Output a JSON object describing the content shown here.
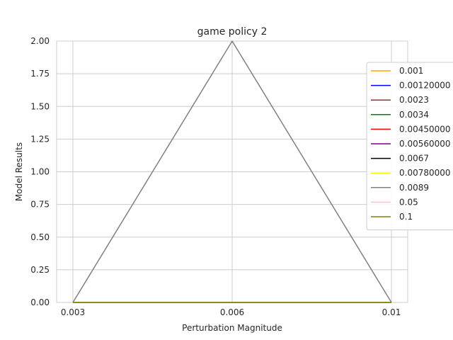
{
  "chart_data": {
    "type": "line",
    "title": "game policy 2",
    "xlabel": "Perturbation Magnitude",
    "ylabel": "Model Results",
    "x": [
      "0.003",
      "0.006",
      "0.01"
    ],
    "ylim": [
      0,
      2.0
    ],
    "yticks": [
      "0.00",
      "0.25",
      "0.50",
      "0.75",
      "1.00",
      "1.25",
      "1.50",
      "1.75",
      "2.00"
    ],
    "grid": true,
    "legend_position": "right",
    "series": [
      {
        "name": "0.001",
        "color": "#ffa500",
        "values": [
          0,
          0,
          0
        ]
      },
      {
        "name": "0.00120000",
        "color": "#0000ff",
        "values": [
          0,
          0,
          0
        ]
      },
      {
        "name": "0.0023",
        "color": "#a52a2a",
        "values": [
          0,
          0,
          0
        ]
      },
      {
        "name": "0.0034",
        "color": "#008000",
        "values": [
          0,
          0,
          0
        ]
      },
      {
        "name": "0.00450000",
        "color": "#ff0000",
        "values": [
          0,
          0,
          0
        ]
      },
      {
        "name": "0.00560000",
        "color": "#800080",
        "values": [
          0,
          0,
          0
        ]
      },
      {
        "name": "0.0067",
        "color": "#000000",
        "values": [
          0,
          0,
          0
        ]
      },
      {
        "name": "0.00780000",
        "color": "#ffff00",
        "values": [
          0,
          0,
          0
        ]
      },
      {
        "name": "0.0089",
        "color": "#808080",
        "values": [
          0,
          2,
          0
        ]
      },
      {
        "name": "0.05",
        "color": "#ffc0cb",
        "values": [
          0,
          0,
          0
        ]
      },
      {
        "name": "0.1",
        "color": "#808000",
        "values": [
          0,
          0,
          0
        ]
      }
    ]
  }
}
